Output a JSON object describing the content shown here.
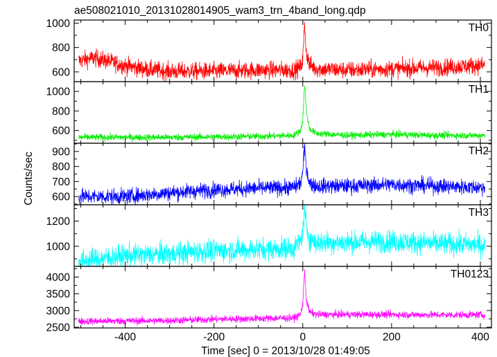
{
  "chart_data": {
    "type": "line",
    "title": "ae508021010_20131028014905_wam3_trn_4band_long.qdp",
    "xlabel": "Time [sec] 0 = 2013/10/28 01:49:05",
    "ylabel": "Counts/sec",
    "xlim": [
      -515,
      425
    ],
    "x_ticks": [
      -400,
      -200,
      0,
      200,
      400
    ],
    "grid": false,
    "panels": [
      {
        "name": "TH0",
        "color": "#ff0000",
        "ylim": [
          520,
          1025
        ],
        "y_ticks": [
          600,
          800,
          1000
        ],
        "profile": [
          [
            -505,
            690
          ],
          [
            -470,
            715
          ],
          [
            -440,
            690
          ],
          [
            -400,
            650
          ],
          [
            -350,
            620
          ],
          [
            -300,
            605
          ],
          [
            -200,
            605
          ],
          [
            -100,
            615
          ],
          [
            -20,
            615
          ],
          [
            -5,
            640
          ],
          [
            0,
            700
          ],
          [
            4,
            1000
          ],
          [
            8,
            760
          ],
          [
            15,
            660
          ],
          [
            30,
            625
          ],
          [
            100,
            615
          ],
          [
            200,
            625
          ],
          [
            300,
            635
          ],
          [
            410,
            655
          ]
        ],
        "noise": 36
      },
      {
        "name": "TH1",
        "color": "#00ee00",
        "ylim": [
          470,
          1100
        ],
        "y_ticks": [
          600,
          800,
          1000
        ],
        "profile": [
          [
            -505,
            530
          ],
          [
            -300,
            530
          ],
          [
            -100,
            540
          ],
          [
            -20,
            550
          ],
          [
            -5,
            600
          ],
          [
            0,
            700
          ],
          [
            4,
            1085
          ],
          [
            8,
            800
          ],
          [
            15,
            620
          ],
          [
            30,
            570
          ],
          [
            100,
            550
          ],
          [
            200,
            560
          ],
          [
            300,
            550
          ],
          [
            410,
            550
          ]
        ],
        "noise": 18
      },
      {
        "name": "TH2",
        "color": "#0000ff",
        "ylim": [
          545,
          955
        ],
        "y_ticks": [
          600,
          700,
          800,
          900
        ],
        "profile": [
          [
            -505,
            600
          ],
          [
            -400,
            600
          ],
          [
            -300,
            625
          ],
          [
            -200,
            645
          ],
          [
            -100,
            655
          ],
          [
            -20,
            660
          ],
          [
            -5,
            690
          ],
          [
            0,
            760
          ],
          [
            4,
            930
          ],
          [
            8,
            800
          ],
          [
            15,
            690
          ],
          [
            30,
            670
          ],
          [
            100,
            670
          ],
          [
            200,
            680
          ],
          [
            300,
            670
          ],
          [
            410,
            660
          ]
        ],
        "noise": 26
      },
      {
        "name": "TH3",
        "color": "#00ffff",
        "ylim": [
          840,
          1330
        ],
        "y_ticks": [
          1000,
          1200
        ],
        "profile": [
          [
            -505,
            880
          ],
          [
            -400,
            925
          ],
          [
            -300,
            940
          ],
          [
            -200,
            965
          ],
          [
            -100,
            975
          ],
          [
            -20,
            985
          ],
          [
            -5,
            1040
          ],
          [
            0,
            1120
          ],
          [
            4,
            1300
          ],
          [
            8,
            1150
          ],
          [
            15,
            1060
          ],
          [
            30,
            1030
          ],
          [
            100,
            1030
          ],
          [
            200,
            1040
          ],
          [
            300,
            1020
          ],
          [
            410,
            1010
          ]
        ],
        "noise": 45
      },
      {
        "name": "TH0123",
        "color": "#ff00ff",
        "ylim": [
          2480,
          4320
        ],
        "y_ticks": [
          2500,
          3000,
          3500,
          4000
        ],
        "profile": [
          [
            -505,
            2680
          ],
          [
            -300,
            2700
          ],
          [
            -200,
            2740
          ],
          [
            -100,
            2760
          ],
          [
            -20,
            2780
          ],
          [
            -5,
            2880
          ],
          [
            0,
            3200
          ],
          [
            4,
            4230
          ],
          [
            8,
            3300
          ],
          [
            15,
            2960
          ],
          [
            30,
            2880
          ],
          [
            100,
            2880
          ],
          [
            200,
            2880
          ],
          [
            300,
            2870
          ],
          [
            410,
            2870
          ]
        ],
        "noise": 55
      }
    ]
  }
}
